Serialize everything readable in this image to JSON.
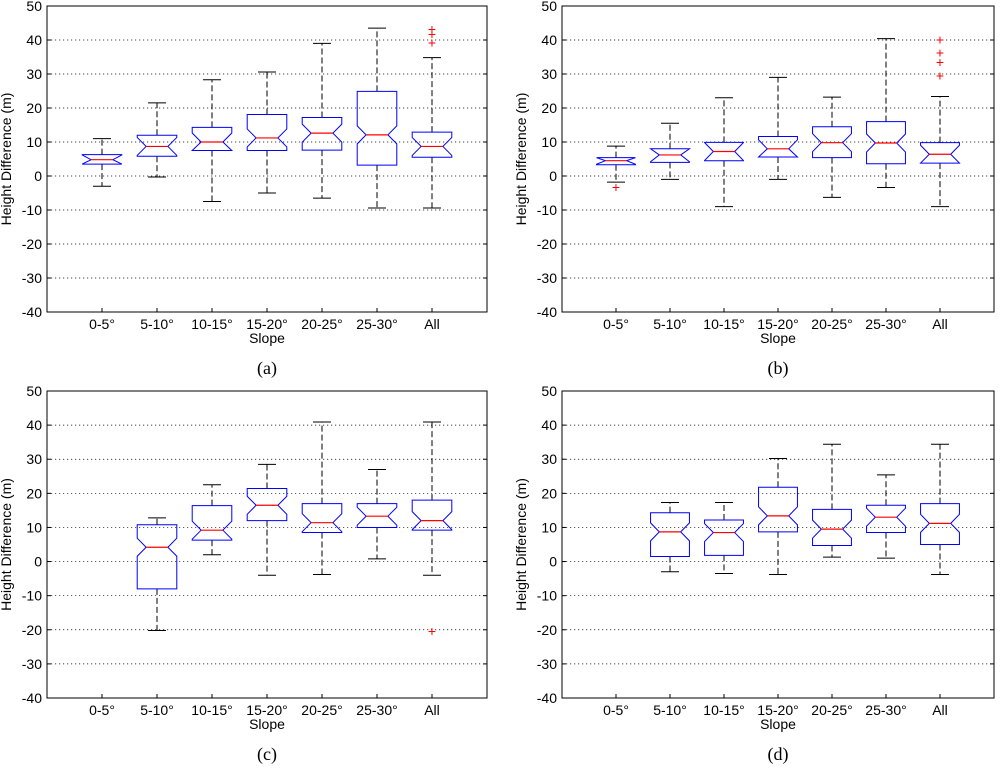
{
  "figure": {
    "colors": {
      "box": "#0000ff",
      "median": "#ff0000",
      "whisker": "#000000",
      "outlier": "#ff0000",
      "grid": "#000000",
      "axes": "#000000"
    }
  },
  "chart_data": [
    {
      "type": "boxplot",
      "panel_label": "(a)",
      "xlabel": "Slope",
      "ylabel": "Height Difference (m)",
      "ylim": [
        -40,
        50
      ],
      "yticks": [
        -40,
        -30,
        -20,
        -10,
        0,
        10,
        20,
        30,
        40,
        50
      ],
      "grid": "horizontal-dotted",
      "notched": true,
      "categories": [
        "0-5°",
        "5-10°",
        "10-15°",
        "15-20°",
        "20-25°",
        "25-30°",
        "All"
      ],
      "boxes": [
        {
          "whisker_low": -3,
          "q1": 3.5,
          "median": 4.8,
          "q3": 6.3,
          "whisker_high": 11,
          "outliers": []
        },
        {
          "whisker_low": -0.3,
          "q1": 5.8,
          "median": 8.7,
          "q3": 12,
          "whisker_high": 21.5,
          "outliers": []
        },
        {
          "whisker_low": -7.5,
          "q1": 7.5,
          "median": 10,
          "q3": 14.3,
          "whisker_high": 28.3,
          "outliers": []
        },
        {
          "whisker_low": -5,
          "q1": 7.5,
          "median": 11.2,
          "q3": 18.1,
          "whisker_high": 30.6,
          "outliers": []
        },
        {
          "whisker_low": -6.5,
          "q1": 7.6,
          "median": 12.6,
          "q3": 17.2,
          "whisker_high": 39,
          "outliers": []
        },
        {
          "whisker_low": -9.4,
          "q1": 3.2,
          "median": 12.1,
          "q3": 24.9,
          "whisker_high": 43.5,
          "outliers": []
        },
        {
          "whisker_low": -9.4,
          "q1": 5.5,
          "median": 8.7,
          "q3": 12.9,
          "whisker_high": 34.8,
          "outliers": [
            39.2,
            41.8,
            43.3
          ]
        }
      ]
    },
    {
      "type": "boxplot",
      "panel_label": "(b)",
      "xlabel": "Slope",
      "ylabel": "Height Difference (m)",
      "ylim": [
        -40,
        50
      ],
      "yticks": [
        -40,
        -30,
        -20,
        -10,
        0,
        10,
        20,
        30,
        40,
        50
      ],
      "grid": "horizontal-dotted",
      "notched": true,
      "categories": [
        "0-5°",
        "5-10°",
        "10-15°",
        "15-20°",
        "20-25°",
        "25-30°",
        "All"
      ],
      "boxes": [
        {
          "whisker_low": -1.8,
          "q1": 3.3,
          "median": 4.5,
          "q3": 5.4,
          "whisker_high": 8.8,
          "outliers": [
            -3.3
          ]
        },
        {
          "whisker_low": -1,
          "q1": 4,
          "median": 6.2,
          "q3": 8,
          "whisker_high": 15.5,
          "outliers": []
        },
        {
          "whisker_low": -9,
          "q1": 4.5,
          "median": 7.2,
          "q3": 9.9,
          "whisker_high": 23,
          "outliers": []
        },
        {
          "whisker_low": -1,
          "q1": 5.6,
          "median": 8,
          "q3": 11.6,
          "whisker_high": 29,
          "outliers": []
        },
        {
          "whisker_low": -6.3,
          "q1": 5.4,
          "median": 9.8,
          "q3": 14.5,
          "whisker_high": 23.2,
          "outliers": []
        },
        {
          "whisker_low": -3.4,
          "q1": 3.6,
          "median": 9.7,
          "q3": 16,
          "whisker_high": 40.4,
          "outliers": []
        },
        {
          "whisker_low": -9,
          "q1": 3.8,
          "median": 6.4,
          "q3": 9.8,
          "whisker_high": 23.4,
          "outliers": [
            29.5,
            33.5,
            36.3,
            40.2
          ]
        }
      ]
    },
    {
      "type": "boxplot",
      "panel_label": "(c)",
      "xlabel": "Slope",
      "ylabel": "Height Difference (m)",
      "ylim": [
        -40,
        50
      ],
      "yticks": [
        -40,
        -30,
        -20,
        -10,
        0,
        10,
        20,
        30,
        40,
        50
      ],
      "grid": "horizontal-dotted",
      "notched": true,
      "categories": [
        "0-5°",
        "5-10°",
        "10-15°",
        "15-20°",
        "20-25°",
        "25-30°",
        "All"
      ],
      "boxes": [
        null,
        {
          "whisker_low": -20.2,
          "q1": -8,
          "median": 4.2,
          "q3": 10.8,
          "whisker_high": 12.8,
          "outliers": []
        },
        {
          "whisker_low": 2,
          "q1": 6.3,
          "median": 9.2,
          "q3": 16.4,
          "whisker_high": 22.5,
          "outliers": []
        },
        {
          "whisker_low": -4,
          "q1": 12,
          "median": 16.5,
          "q3": 21.4,
          "whisker_high": 28.5,
          "outliers": []
        },
        {
          "whisker_low": -3.8,
          "q1": 8.5,
          "median": 11.4,
          "q3": 17,
          "whisker_high": 40.9,
          "outliers": []
        },
        {
          "whisker_low": 0.8,
          "q1": 10,
          "median": 13.3,
          "q3": 17,
          "whisker_high": 27,
          "outliers": []
        },
        {
          "whisker_low": -4,
          "q1": 9.2,
          "median": 12,
          "q3": 18,
          "whisker_high": 40.9,
          "outliers": [
            -20.3
          ]
        }
      ]
    },
    {
      "type": "boxplot",
      "panel_label": "(d)",
      "xlabel": "Slope",
      "ylabel": "Height Difference (m)",
      "ylim": [
        -40,
        50
      ],
      "yticks": [
        -40,
        -30,
        -20,
        -10,
        0,
        10,
        20,
        30,
        40,
        50
      ],
      "grid": "horizontal-dotted",
      "notched": true,
      "categories": [
        "0-5°",
        "5-10°",
        "10-15°",
        "15-20°",
        "20-25°",
        "25-30°",
        "All"
      ],
      "boxes": [
        null,
        {
          "whisker_low": -3,
          "q1": 1.5,
          "median": 8.7,
          "q3": 14.3,
          "whisker_high": 17.3,
          "outliers": []
        },
        {
          "whisker_low": -3.5,
          "q1": 1.8,
          "median": 8.5,
          "q3": 12.2,
          "whisker_high": 17.3,
          "outliers": []
        },
        {
          "whisker_low": -3.8,
          "q1": 8.7,
          "median": 13.4,
          "q3": 21.8,
          "whisker_high": 30.2,
          "outliers": []
        },
        {
          "whisker_low": 1.3,
          "q1": 4.7,
          "median": 9.5,
          "q3": 15.3,
          "whisker_high": 34.4,
          "outliers": []
        },
        {
          "whisker_low": 1,
          "q1": 8.5,
          "median": 13,
          "q3": 16.5,
          "whisker_high": 25.4,
          "outliers": []
        },
        {
          "whisker_low": -3.8,
          "q1": 5,
          "median": 11.2,
          "q3": 17,
          "whisker_high": 34.4,
          "outliers": []
        }
      ]
    }
  ]
}
